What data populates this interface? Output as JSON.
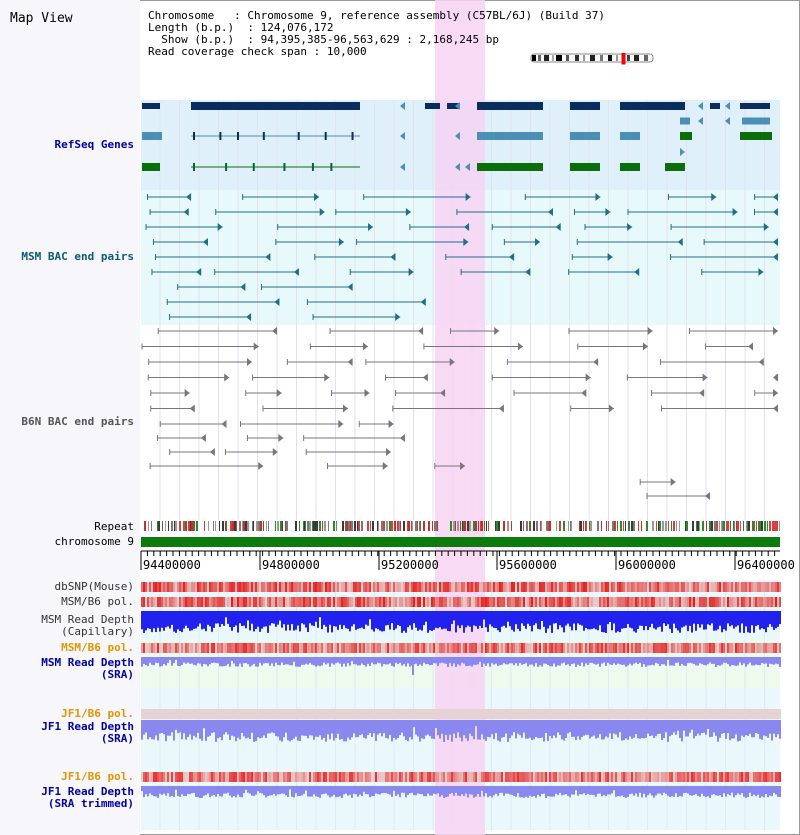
{
  "title": "Map View",
  "info": {
    "chromosome_key": "Chromosome",
    "chromosome_val": "Chromosome 9, reference assembly (C57BL/6J) (Build 37)",
    "length_key": "Length (b.p.)",
    "length_val": "124,076,172",
    "show_key": "Show (b.p.)",
    "show_val": "94,395,385-96,563,629 : 2,168,245 bp",
    "coverage_key": "Read coverage check span",
    "coverage_val": "10,000"
  },
  "track_labels": {
    "refseq": "RefSeq Genes",
    "msm_bac": "MSM BAC end pairs",
    "b6n_bac": "B6N BAC end pairs",
    "repeat": "Repeat",
    "chromosome": "chromosome 9",
    "dbsnp": "dbSNP(Mouse)",
    "msm_b6_pol_1": "MSM/B6 pol.",
    "msm_depth_cap_1": "MSM Read Depth",
    "msm_depth_cap_2": "(Capillary)",
    "msm_b6_pol_2": "MSM/B6 pol.",
    "msm_depth_sra_1": "MSM Read Depth",
    "msm_depth_sra_2": "(SRA)",
    "jf1_b6_pol_1": "JF1/B6 pol.",
    "jf1_depth_sra_1": "JF1 Read Depth",
    "jf1_depth_sra_2": "(SRA)",
    "jf1_b6_pol_2": "JF1/B6 pol.",
    "jf1_depth_trim_1": "JF1 Read Depth",
    "jf1_depth_trim_2": "(SRA trimmed)"
  },
  "axis_ticks": [
    "94400000",
    "94800000",
    "95200000",
    "95600000",
    "96000000",
    "96400000"
  ],
  "colors": {
    "refseq_dark": "#0a2d5e",
    "refseq_mid": "#4a8fb5",
    "refseq_green": "#0a6e0a",
    "refseq_bg": "#dff0fb",
    "msm_bac_line": "#1f6f8b",
    "msm_bac_bg": "#e8f9fb",
    "b6n_bac_line": "#777777",
    "highlight": "#f7d4f3",
    "chromosome_bar": "#0d7a0d",
    "pol_red": "#e8413c",
    "depth_blue": "#2222ee",
    "depth_light_blue": "#8888ee",
    "label_blue": "#0000aa",
    "label_orange": "#e69500",
    "label_teal": "#0a5a78"
  }
}
